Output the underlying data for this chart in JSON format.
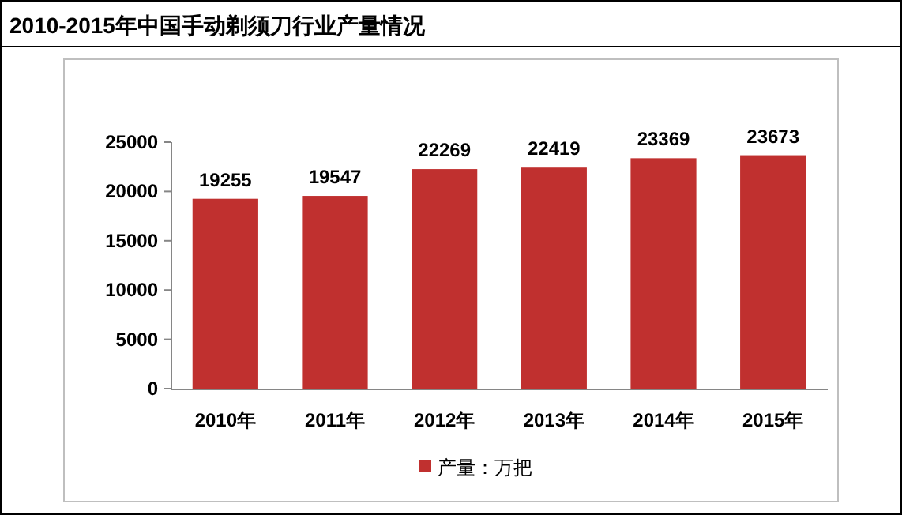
{
  "chart_data": {
    "type": "bar",
    "title": "2010-2015年中国手动剃须刀行业产量情况",
    "categories": [
      "2010年",
      "2011年",
      "2012年",
      "2013年",
      "2014年",
      "2015年"
    ],
    "series": [
      {
        "name": "产量：万把",
        "color": "#c0302f",
        "values": [
          19255,
          19547,
          22269,
          22419,
          23369,
          23673
        ]
      }
    ],
    "ylim": [
      0,
      25000
    ],
    "yticks": [
      0,
      5000,
      10000,
      15000,
      20000,
      25000
    ],
    "data_labels": true,
    "legend": "bottom"
  }
}
